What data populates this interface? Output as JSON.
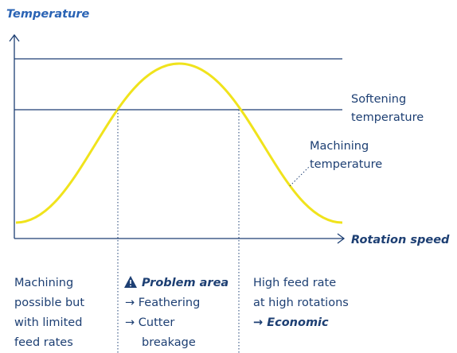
{
  "title": "Temperature",
  "axis_label": "Rotation speed",
  "curve_labels": [
    {
      "lines": [
        "Softening",
        "temperature"
      ]
    },
    {
      "lines": [
        "Machining",
        "temperature"
      ]
    }
  ],
  "columns": [
    {
      "lines": [
        "Machining",
        "possible but",
        "with limited",
        "feed rates"
      ]
    },
    {
      "heading": "Problem area",
      "lines": [
        "→ Feathering",
        "→ Cutter",
        "breakage"
      ]
    },
    {
      "lines": [
        "High feed rate",
        "at high rotations"
      ],
      "emphasis": "→ Economic"
    }
  ]
}
